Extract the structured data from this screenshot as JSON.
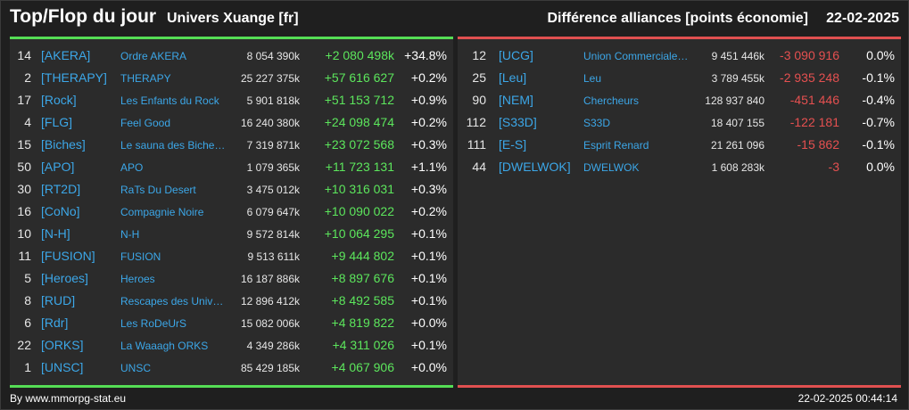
{
  "header": {
    "title": "Top/Flop du jour",
    "subtitle": "Univers Xuange [fr]",
    "metric": "Différence alliances [points économie]",
    "date": "22-02-2025"
  },
  "colors": {
    "top_accent": "#55dd55",
    "flop_accent": "#e05050",
    "link": "#3ca7e8"
  },
  "top": [
    {
      "rank": "14",
      "tag": "[AKERA]",
      "name": "Ordre AKERA",
      "eco": "8 054 390k",
      "diff": "+2 080 498k",
      "pct": "+34.8%"
    },
    {
      "rank": "2",
      "tag": "[THERAPY]",
      "name": "THERAPY",
      "eco": "25 227 375k",
      "diff": "+57 616 627",
      "pct": "+0.2%"
    },
    {
      "rank": "17",
      "tag": "[Rock]",
      "name": "Les Enfants du Rock",
      "eco": "5 901 818k",
      "diff": "+51 153 712",
      "pct": "+0.9%"
    },
    {
      "rank": "4",
      "tag": "[FLG]",
      "name": "Feel Good",
      "eco": "16 240 380k",
      "diff": "+24 098 474",
      "pct": "+0.2%"
    },
    {
      "rank": "15",
      "tag": "[Biches]",
      "name": "Le sauna des Biche…",
      "eco": "7 319 871k",
      "diff": "+23 072 568",
      "pct": "+0.3%"
    },
    {
      "rank": "50",
      "tag": "[APO]",
      "name": "APO",
      "eco": "1 079 365k",
      "diff": "+11 723 131",
      "pct": "+1.1%"
    },
    {
      "rank": "30",
      "tag": "[RT2D]",
      "name": "RaTs Du Desert",
      "eco": "3 475 012k",
      "diff": "+10 316 031",
      "pct": "+0.3%"
    },
    {
      "rank": "16",
      "tag": "[CoNo]",
      "name": "Compagnie Noire",
      "eco": "6 079 647k",
      "diff": "+10 090 022",
      "pct": "+0.2%"
    },
    {
      "rank": "10",
      "tag": "[N-H]",
      "name": "N-H",
      "eco": "9 572 814k",
      "diff": "+10 064 295",
      "pct": "+0.1%"
    },
    {
      "rank": "11",
      "tag": "[FUSION]",
      "name": "FUSION",
      "eco": "9 513 611k",
      "diff": "+9 444 802",
      "pct": "+0.1%"
    },
    {
      "rank": "5",
      "tag": "[Heroes]",
      "name": "Heroes",
      "eco": "16 187 886k",
      "diff": "+8 897 676",
      "pct": "+0.1%"
    },
    {
      "rank": "8",
      "tag": "[RUD]",
      "name": "Rescapes des Univ…",
      "eco": "12 896 412k",
      "diff": "+8 492 585",
      "pct": "+0.1%"
    },
    {
      "rank": "6",
      "tag": "[Rdr]",
      "name": "Les RoDeUrS",
      "eco": "15 082 006k",
      "diff": "+4 819 822",
      "pct": "+0.0%"
    },
    {
      "rank": "22",
      "tag": "[ORKS]",
      "name": "La Waaagh ORKS",
      "eco": "4 349 286k",
      "diff": "+4 311 026",
      "pct": "+0.1%"
    },
    {
      "rank": "1",
      "tag": "[UNSC]",
      "name": "UNSC",
      "eco": "85 429 185k",
      "diff": "+4 067 906",
      "pct": "+0.0%"
    }
  ],
  "flop": [
    {
      "rank": "12",
      "tag": "[UCG]",
      "name": "Union Commerciale…",
      "eco": "9 451 446k",
      "diff": "-3 090 916",
      "pct": "0.0%"
    },
    {
      "rank": "25",
      "tag": "[Leu]",
      "name": "Leu",
      "eco": "3 789 455k",
      "diff": "-2 935 248",
      "pct": "-0.1%"
    },
    {
      "rank": "90",
      "tag": "[NEM]",
      "name": "Chercheurs",
      "eco": "128 937 840",
      "diff": "-451 446",
      "pct": "-0.4%"
    },
    {
      "rank": "112",
      "tag": "[S33D]",
      "name": "S33D",
      "eco": "18 407 155",
      "diff": "-122 181",
      "pct": "-0.7%"
    },
    {
      "rank": "111",
      "tag": "[E-S]",
      "name": "Esprit Renard",
      "eco": "21 261 096",
      "diff": "-15 862",
      "pct": "-0.1%"
    },
    {
      "rank": "44",
      "tag": "[DWELWOK]",
      "name": "DWELWOK",
      "eco": "1 608 283k",
      "diff": "-3",
      "pct": "0.0%"
    }
  ],
  "footer": {
    "source": "By www.mmorpg-stat.eu",
    "timestamp": "22-02-2025 00:44:14"
  }
}
